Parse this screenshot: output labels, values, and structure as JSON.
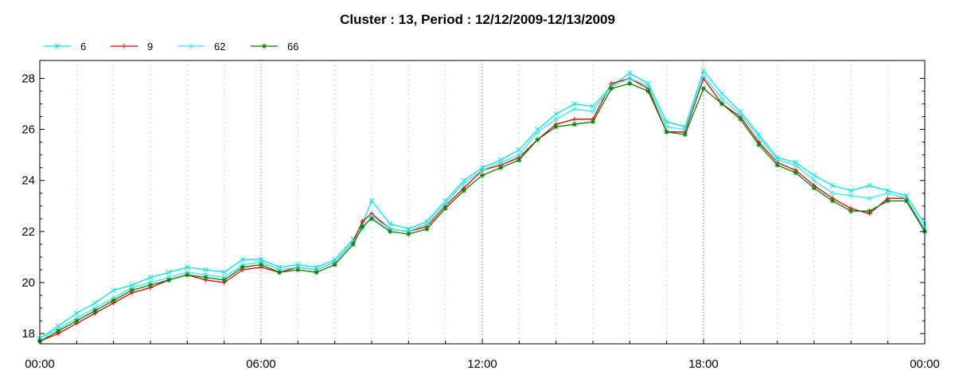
{
  "chart_data": {
    "type": "line",
    "title": "Cluster : 13, Period : 12/12/2009-12/13/2009",
    "xlabel": "",
    "ylabel": "",
    "x_unit": "hours",
    "xlim": [
      0,
      24
    ],
    "ylim": [
      17.6,
      28.7
    ],
    "x_ticks": [
      {
        "value": 0,
        "label": "00:00"
      },
      {
        "value": 6,
        "label": "06:00"
      },
      {
        "value": 12,
        "label": "12:00"
      },
      {
        "value": 18,
        "label": "18:00"
      },
      {
        "value": 24,
        "label": "00:00"
      }
    ],
    "y_ticks": [
      {
        "value": 18,
        "label": "18"
      },
      {
        "value": 20,
        "label": "20"
      },
      {
        "value": 22,
        "label": "22"
      },
      {
        "value": 24,
        "label": "24"
      },
      {
        "value": 26,
        "label": "26"
      },
      {
        "value": 28,
        "label": "28"
      }
    ],
    "x_major_grid": [
      6,
      12,
      18
    ],
    "x_minor_grid_step": 1,
    "grid": true,
    "legend_position": "top-left",
    "x": [
      0,
      0.5,
      1,
      1.5,
      2,
      2.5,
      3,
      3.5,
      4,
      4.5,
      5,
      5.5,
      6,
      6.5,
      7,
      7.5,
      8,
      8.5,
      8.75,
      9,
      9.5,
      10,
      10.5,
      11,
      11.5,
      12,
      12.5,
      13,
      13.5,
      14,
      14.5,
      15,
      15.5,
      16,
      16.5,
      17,
      17.5,
      18,
      18.5,
      19,
      19.5,
      20,
      20.5,
      21,
      21.5,
      22,
      22.5,
      23,
      23.5,
      24
    ],
    "series": [
      {
        "name": "6",
        "color": "#00e5e5",
        "marker": "x",
        "values": [
          17.8,
          18.3,
          18.8,
          19.2,
          19.7,
          19.9,
          20.2,
          20.4,
          20.6,
          20.5,
          20.4,
          20.9,
          20.9,
          20.6,
          20.7,
          20.6,
          20.9,
          21.7,
          22.3,
          23.2,
          22.3,
          22.1,
          22.4,
          23.2,
          24.0,
          24.5,
          24.8,
          25.2,
          26.0,
          26.6,
          27.0,
          26.9,
          27.7,
          28.2,
          27.8,
          26.3,
          26.1,
          28.3,
          27.4,
          26.7,
          25.8,
          24.9,
          24.7,
          24.2,
          23.8,
          23.6,
          23.8,
          23.6,
          23.4,
          22.3
        ]
      },
      {
        "name": "9",
        "color": "#e00000",
        "marker": "+",
        "values": [
          17.7,
          18.0,
          18.4,
          18.8,
          19.2,
          19.6,
          19.8,
          20.1,
          20.3,
          20.1,
          20.0,
          20.5,
          20.6,
          20.4,
          20.6,
          20.5,
          20.8,
          21.6,
          22.4,
          22.7,
          22.1,
          22.0,
          22.2,
          23.0,
          23.7,
          24.4,
          24.6,
          24.9,
          25.6,
          26.2,
          26.4,
          26.4,
          27.8,
          28.0,
          27.6,
          25.9,
          25.9,
          28.0,
          27.0,
          26.5,
          25.5,
          24.7,
          24.4,
          23.8,
          23.3,
          22.9,
          22.7,
          23.3,
          23.3,
          22.0
        ]
      },
      {
        "name": "62",
        "color": "#33e8e8",
        "marker": "circle",
        "values": [
          17.8,
          18.2,
          18.6,
          19.0,
          19.4,
          19.8,
          20.0,
          20.2,
          20.4,
          20.3,
          20.2,
          20.7,
          20.8,
          20.5,
          20.6,
          20.5,
          20.8,
          21.6,
          22.1,
          22.6,
          22.1,
          22.0,
          22.3,
          23.1,
          23.9,
          24.4,
          24.7,
          25.0,
          25.9,
          26.4,
          26.8,
          26.7,
          27.7,
          28.0,
          27.7,
          26.1,
          26.0,
          28.1,
          27.2,
          26.6,
          25.7,
          24.8,
          24.6,
          24.0,
          23.5,
          23.4,
          23.3,
          23.5,
          23.3,
          22.1
        ]
      },
      {
        "name": "66",
        "color": "#008000",
        "marker": "star",
        "values": [
          17.7,
          18.1,
          18.5,
          18.9,
          19.3,
          19.7,
          19.9,
          20.1,
          20.3,
          20.2,
          20.1,
          20.6,
          20.7,
          20.4,
          20.5,
          20.4,
          20.7,
          21.5,
          22.2,
          22.5,
          22.0,
          21.9,
          22.1,
          22.9,
          23.6,
          24.2,
          24.5,
          24.8,
          25.6,
          26.1,
          26.2,
          26.3,
          27.6,
          27.8,
          27.5,
          25.9,
          25.8,
          27.6,
          27.0,
          26.4,
          25.4,
          24.6,
          24.3,
          23.7,
          23.2,
          22.8,
          22.8,
          23.2,
          23.2,
          22.0
        ]
      }
    ]
  }
}
